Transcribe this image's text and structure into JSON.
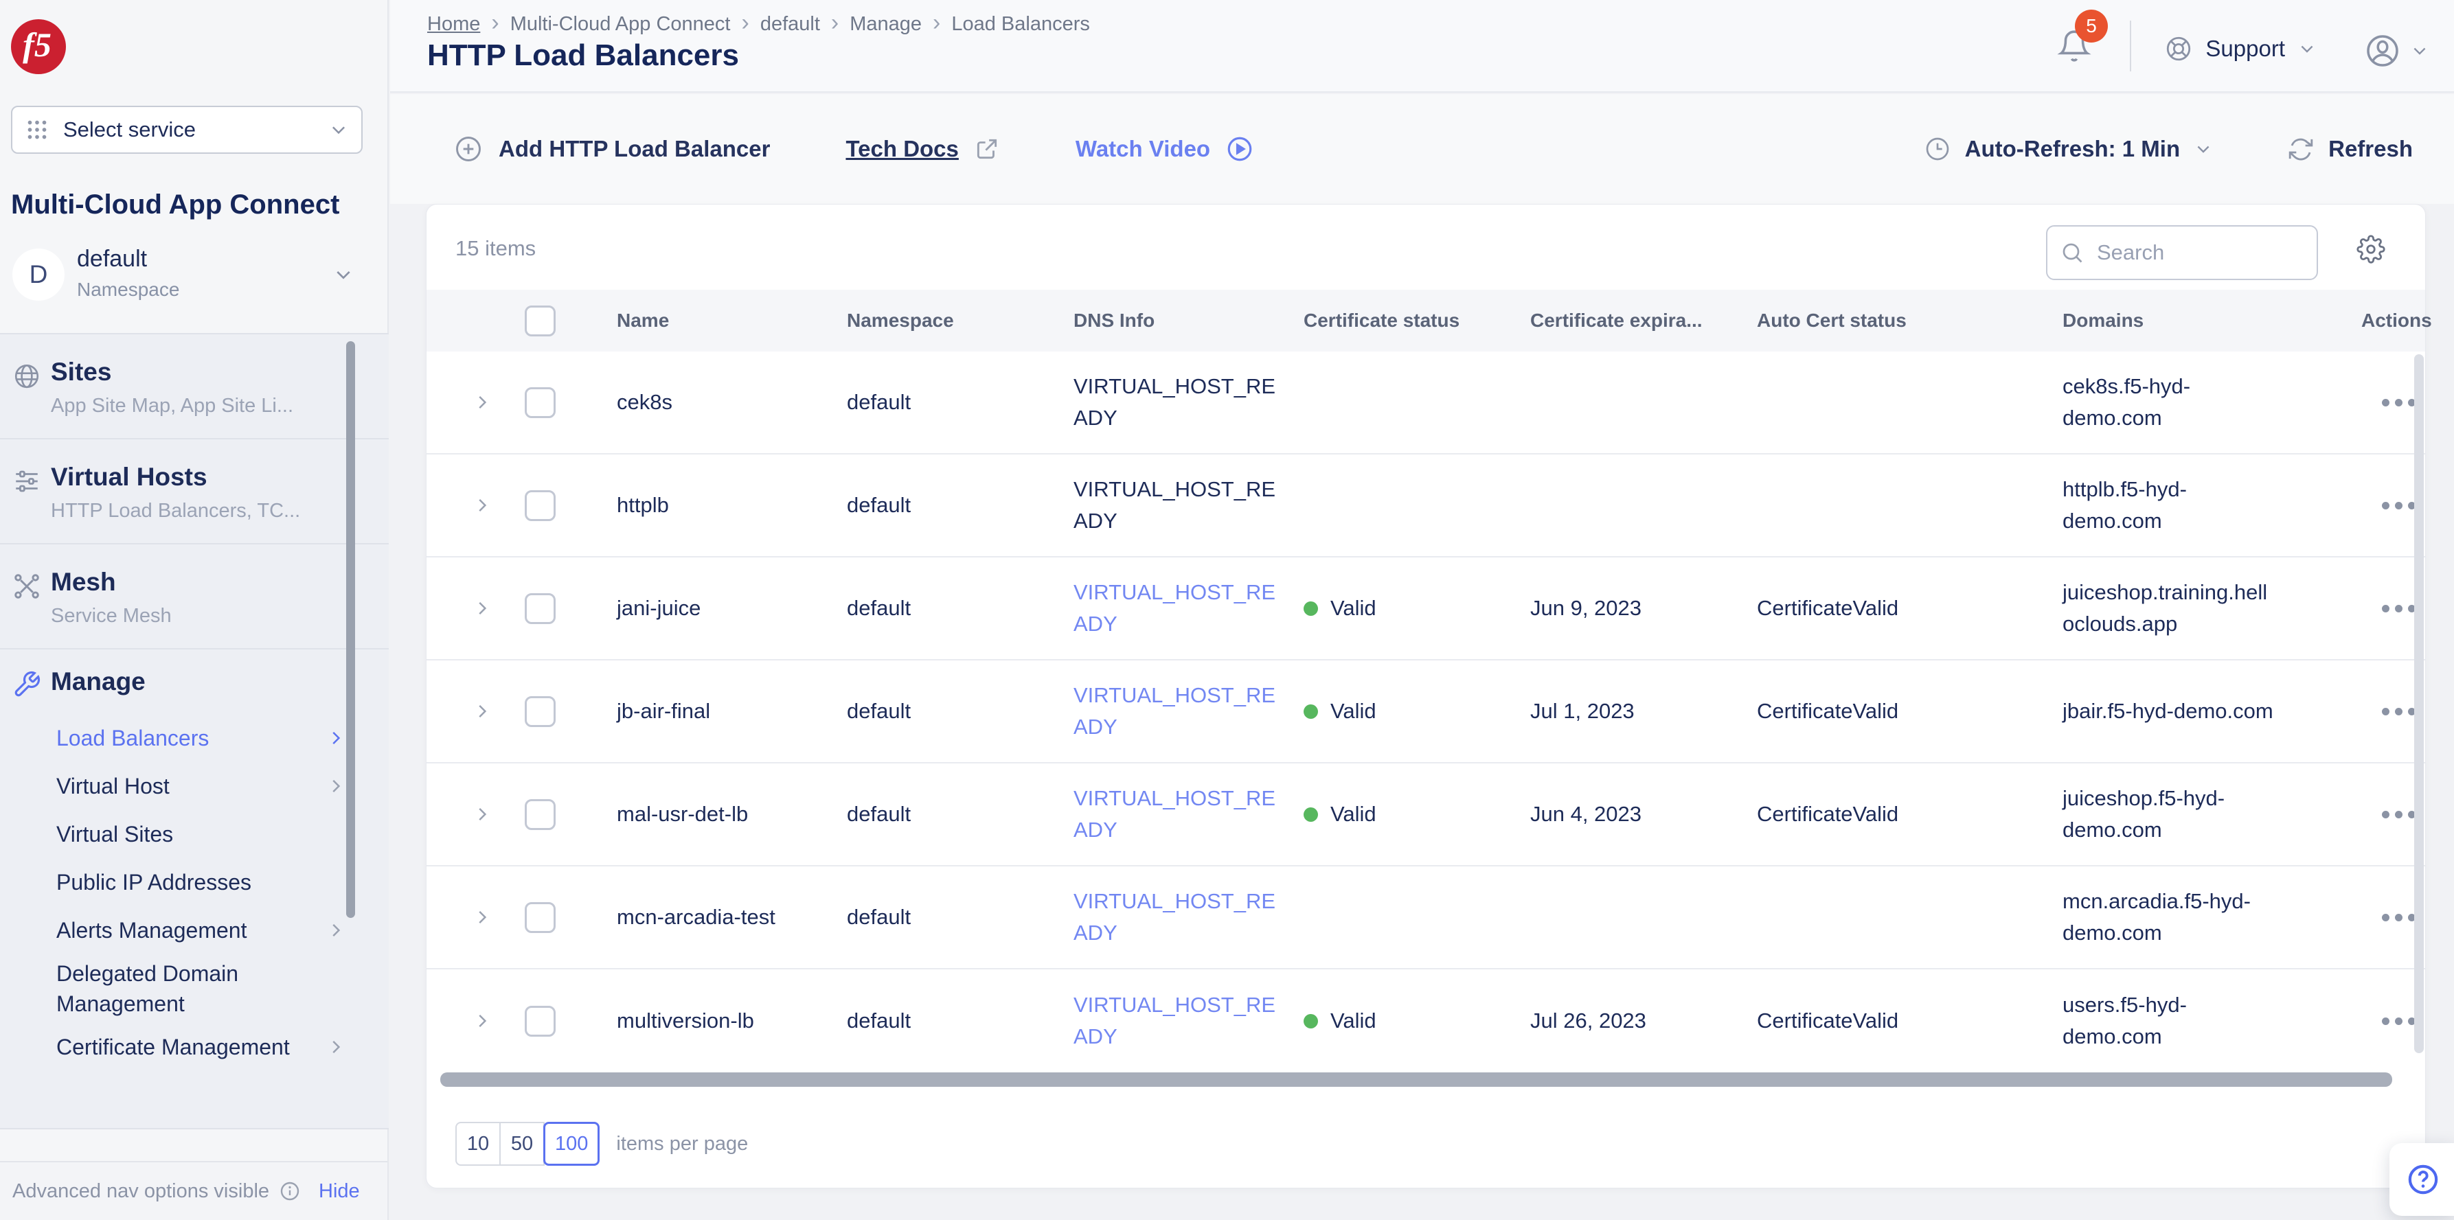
{
  "header": {
    "breadcrumb": [
      "Home",
      "Multi-Cloud App Connect",
      "default",
      "Manage",
      "Load Balancers"
    ],
    "title": "HTTP Load Balancers",
    "notification_count": "5",
    "support_label": "Support"
  },
  "sidebar": {
    "logo_text": "f5",
    "service_selector_label": "Select service",
    "product_title": "Multi-Cloud App Connect",
    "namespace": {
      "initial": "D",
      "name": "default",
      "type": "Namespace"
    },
    "sections": [
      {
        "title": "Sites",
        "subtitle": "App Site Map, App Site Li...",
        "icon": "globe-icon"
      },
      {
        "title": "Virtual Hosts",
        "subtitle": "HTTP Load Balancers, TC...",
        "icon": "sliders-icon"
      },
      {
        "title": "Mesh",
        "subtitle": "Service Mesh",
        "icon": "mesh-icon"
      }
    ],
    "manage": {
      "title": "Manage",
      "items": [
        {
          "label": "Load Balancers",
          "active": true,
          "chevron": true
        },
        {
          "label": "Virtual Host",
          "active": false,
          "chevron": true
        },
        {
          "label": "Virtual Sites",
          "active": false,
          "chevron": false
        },
        {
          "label": "Public IP Addresses",
          "active": false,
          "chevron": false
        },
        {
          "label": "Alerts Management",
          "active": false,
          "chevron": true
        },
        {
          "label": "Delegated Domain Management",
          "active": false,
          "chevron": false
        },
        {
          "label": "Certificate Management",
          "active": false,
          "chevron": true
        }
      ]
    },
    "footer": {
      "status": "Advanced nav options visible",
      "action": "Hide"
    }
  },
  "toolbar": {
    "add_button": "Add HTTP Load Balancer",
    "tech_docs": "Tech Docs",
    "watch_video": "Watch Video",
    "auto_refresh": "Auto-Refresh: 1 Min",
    "refresh": "Refresh"
  },
  "table": {
    "items_count": "15 items",
    "search_placeholder": "Search",
    "columns": [
      "Name",
      "Namespace",
      "DNS Info",
      "Certificate status",
      "Certificate expira...",
      "Auto Cert status",
      "Domains",
      "Actions"
    ],
    "rows": [
      {
        "name": "cek8s",
        "namespace": "default",
        "dns_info": "VIRTUAL_HOST_READY",
        "dns_is_link": false,
        "certificate_status": "",
        "certificate_expiration": "",
        "auto_cert_status": "",
        "domains": "cek8s.f5-hyd-demo.com"
      },
      {
        "name": "httplb",
        "namespace": "default",
        "dns_info": "VIRTUAL_HOST_READY",
        "dns_is_link": false,
        "certificate_status": "",
        "certificate_expiration": "",
        "auto_cert_status": "",
        "domains": "httplb.f5-hyd-demo.com"
      },
      {
        "name": "jani-juice",
        "namespace": "default",
        "dns_info": "VIRTUAL_HOST_READY",
        "dns_is_link": true,
        "certificate_status": "Valid",
        "certificate_expiration": "Jun 9, 2023",
        "auto_cert_status": "CertificateValid",
        "domains": "juiceshop.training.helloclouds.app"
      },
      {
        "name": "jb-air-final",
        "namespace": "default",
        "dns_info": "VIRTUAL_HOST_READY",
        "dns_is_link": true,
        "certificate_status": "Valid",
        "certificate_expiration": "Jul 1, 2023",
        "auto_cert_status": "CertificateValid",
        "domains": "jbair.f5-hyd-demo.com"
      },
      {
        "name": "mal-usr-det-lb",
        "namespace": "default",
        "dns_info": "VIRTUAL_HOST_READY",
        "dns_is_link": true,
        "certificate_status": "Valid",
        "certificate_expiration": "Jun 4, 2023",
        "auto_cert_status": "CertificateValid",
        "domains": "juiceshop.f5-hyd-demo.com"
      },
      {
        "name": "mcn-arcadia-test",
        "namespace": "default",
        "dns_info": "VIRTUAL_HOST_READY",
        "dns_is_link": true,
        "certificate_status": "",
        "certificate_expiration": "",
        "auto_cert_status": "",
        "domains": "mcn.arcadia.f5-hyd-demo.com"
      },
      {
        "name": "multiversion-lb",
        "namespace": "default",
        "dns_info": "VIRTUAL_HOST_READY",
        "dns_is_link": true,
        "certificate_status": "Valid",
        "certificate_expiration": "Jul 26, 2023",
        "auto_cert_status": "CertificateValid",
        "domains": "users.f5-hyd-demo.com"
      }
    ]
  },
  "pagination": {
    "options": [
      "10",
      "50",
      "100"
    ],
    "selected": "100",
    "label": "items per page"
  },
  "colors": {
    "accent_blue": "#5b72f0",
    "link_blue": "#7287f2",
    "valid_green": "#57b75e",
    "badge_red": "#e9532f",
    "logo_red": "#cb2030",
    "navy_text": "#1d2b58"
  }
}
